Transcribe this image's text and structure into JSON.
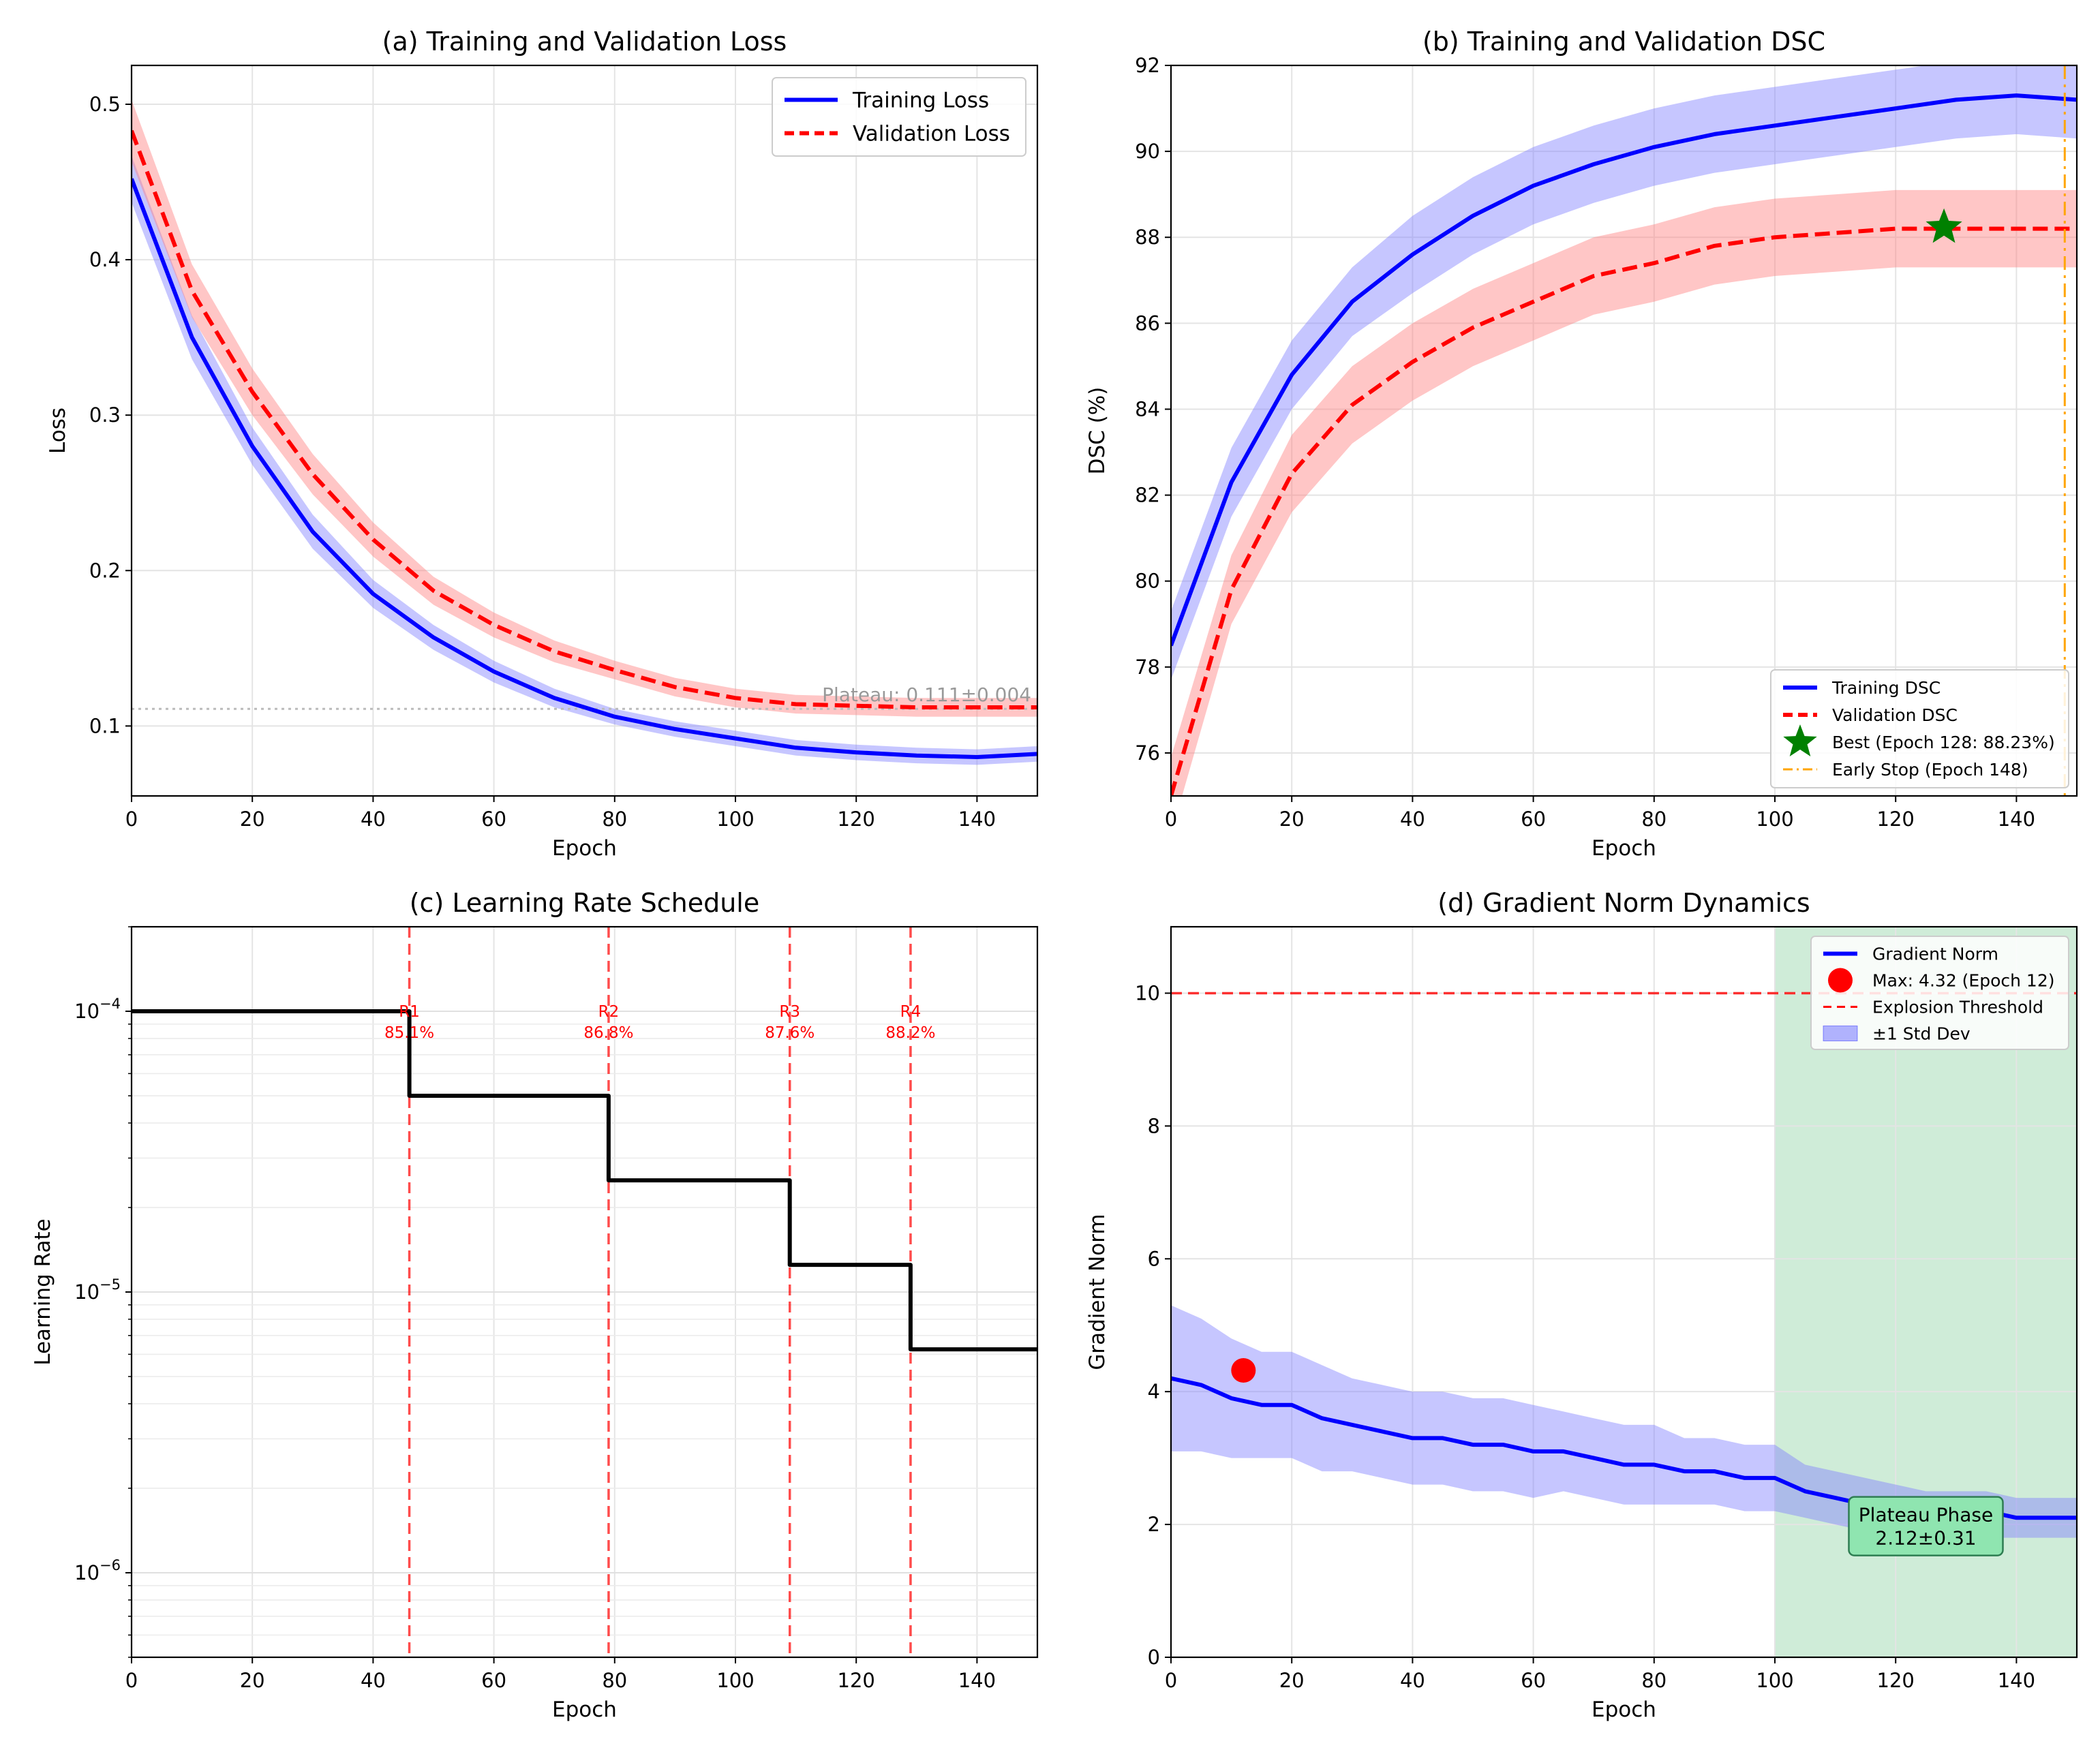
{
  "chart_data": [
    {
      "id": "a",
      "type": "line",
      "title": "(a) Training and Validation Loss",
      "xlabel": "Epoch",
      "ylabel": "Loss",
      "xlim": [
        0,
        150
      ],
      "ylim": [
        0.055,
        0.525
      ],
      "xticks": [
        0,
        20,
        40,
        60,
        80,
        100,
        120,
        140
      ],
      "yticks": [
        0.1,
        0.2,
        0.3,
        0.4,
        0.5
      ],
      "grid": true,
      "legend": "upper-right",
      "series": [
        {
          "name": "Training Loss",
          "style": "solid",
          "color": "#0000ff",
          "band_color": "#8080ff",
          "x": [
            0,
            10,
            20,
            30,
            40,
            50,
            60,
            70,
            80,
            90,
            100,
            110,
            120,
            130,
            140,
            150
          ],
          "y": [
            0.452,
            0.35,
            0.28,
            0.225,
            0.185,
            0.157,
            0.135,
            0.118,
            0.106,
            0.098,
            0.092,
            0.086,
            0.083,
            0.081,
            0.08,
            0.082
          ],
          "lower": [
            0.437,
            0.336,
            0.268,
            0.214,
            0.176,
            0.149,
            0.128,
            0.112,
            0.101,
            0.093,
            0.087,
            0.081,
            0.078,
            0.076,
            0.075,
            0.077
          ],
          "upper": [
            0.467,
            0.364,
            0.292,
            0.236,
            0.194,
            0.165,
            0.142,
            0.124,
            0.111,
            0.103,
            0.097,
            0.091,
            0.088,
            0.086,
            0.085,
            0.087
          ]
        },
        {
          "name": "Validation Loss",
          "style": "dashed",
          "color": "#ff0000",
          "band_color": "#ff8080",
          "x": [
            0,
            10,
            20,
            30,
            40,
            50,
            60,
            70,
            80,
            90,
            100,
            110,
            120,
            130,
            140,
            150
          ],
          "y": [
            0.483,
            0.38,
            0.315,
            0.262,
            0.22,
            0.187,
            0.165,
            0.148,
            0.136,
            0.125,
            0.118,
            0.114,
            0.113,
            0.112,
            0.112,
            0.112
          ],
          "lower": [
            0.463,
            0.363,
            0.3,
            0.249,
            0.209,
            0.178,
            0.157,
            0.141,
            0.13,
            0.119,
            0.112,
            0.108,
            0.107,
            0.106,
            0.106,
            0.106
          ],
          "upper": [
            0.503,
            0.397,
            0.33,
            0.275,
            0.231,
            0.196,
            0.173,
            0.155,
            0.142,
            0.131,
            0.124,
            0.12,
            0.119,
            0.118,
            0.118,
            0.118
          ]
        }
      ],
      "hlines": [
        {
          "y": 0.111,
          "color": "#bbbbbb",
          "style": "dotted"
        }
      ],
      "annotations": [
        {
          "text": "Plateau: 0.111±0.004",
          "x": 149,
          "y": 0.116,
          "color": "#999999",
          "anchor": "end"
        }
      ]
    },
    {
      "id": "b",
      "type": "line",
      "title": "(b) Training and Validation DSC",
      "xlabel": "Epoch",
      "ylabel": "DSC (%)",
      "xlim": [
        0,
        150
      ],
      "ylim": [
        75,
        92
      ],
      "xticks": [
        0,
        20,
        40,
        60,
        80,
        100,
        120,
        140
      ],
      "yticks": [
        76,
        78,
        80,
        82,
        84,
        86,
        88,
        90,
        92
      ],
      "grid": true,
      "legend": "lower-right",
      "series": [
        {
          "name": "Training DSC",
          "style": "solid",
          "color": "#0000ff",
          "band_color": "#8080ff",
          "x": [
            0,
            10,
            20,
            30,
            40,
            50,
            60,
            70,
            80,
            90,
            100,
            110,
            120,
            130,
            140,
            150
          ],
          "y": [
            78.5,
            82.3,
            84.8,
            86.5,
            87.6,
            88.5,
            89.2,
            89.7,
            90.1,
            90.4,
            90.6,
            90.8,
            91.0,
            91.2,
            91.3,
            91.2
          ],
          "lower": [
            77.7,
            81.5,
            84.0,
            85.7,
            86.7,
            87.6,
            88.3,
            88.8,
            89.2,
            89.5,
            89.7,
            89.9,
            90.1,
            90.3,
            90.4,
            90.3
          ],
          "upper": [
            79.3,
            83.1,
            85.6,
            87.3,
            88.5,
            89.4,
            90.1,
            90.6,
            91.0,
            91.3,
            91.5,
            91.7,
            91.9,
            92.1,
            92.2,
            92.1
          ]
        },
        {
          "name": "Validation DSC",
          "style": "dashed",
          "color": "#ff0000",
          "band_color": "#ff8080",
          "x": [
            0,
            10,
            20,
            30,
            40,
            50,
            60,
            70,
            80,
            90,
            100,
            110,
            120,
            130,
            140,
            150
          ],
          "y": [
            75.0,
            79.8,
            82.5,
            84.1,
            85.1,
            85.9,
            86.5,
            87.1,
            87.4,
            87.8,
            88.0,
            88.1,
            88.2,
            88.2,
            88.2,
            88.2
          ],
          "lower": [
            74.1,
            79.0,
            81.6,
            83.2,
            84.2,
            85.0,
            85.6,
            86.2,
            86.5,
            86.9,
            87.1,
            87.2,
            87.3,
            87.3,
            87.3,
            87.3
          ],
          "upper": [
            75.9,
            80.6,
            83.4,
            85.0,
            86.0,
            86.8,
            87.4,
            88.0,
            88.3,
            88.7,
            88.9,
            89.0,
            89.1,
            89.1,
            89.1,
            89.1
          ]
        }
      ],
      "markers": [
        {
          "name": "Best (Epoch 128: 88.23%)",
          "shape": "star",
          "x": 128,
          "y": 88.23,
          "color": "#008000"
        }
      ],
      "vlines": [
        {
          "name": "Early Stop (Epoch 148)",
          "x": 148,
          "color": "#ffa500",
          "style": "dashdot"
        }
      ]
    },
    {
      "id": "c",
      "type": "line",
      "title": "(c) Learning Rate Schedule",
      "xlabel": "Epoch",
      "ylabel": "Learning Rate",
      "scale_y": "log",
      "xlim": [
        0,
        150
      ],
      "ylim": [
        5e-07,
        0.0002
      ],
      "xticks": [
        0,
        20,
        40,
        60,
        80,
        100,
        120,
        140
      ],
      "ytick_labels": [
        {
          "value": 0.0001,
          "base": "10",
          "exp": "−4"
        },
        {
          "value": 1e-05,
          "base": "10",
          "exp": "−5"
        },
        {
          "value": 1e-06,
          "base": "10",
          "exp": "−6"
        }
      ],
      "grid": true,
      "series": [
        {
          "style": "step",
          "color": "#000000",
          "x": [
            0,
            46,
            46,
            79,
            79,
            109,
            109,
            129,
            129,
            150
          ],
          "y": [
            0.0001,
            0.0001,
            5e-05,
            5e-05,
            2.5e-05,
            2.5e-05,
            1.25e-05,
            1.25e-05,
            6.25e-06,
            6.25e-06
          ]
        }
      ],
      "vlines": [
        {
          "x": 46,
          "label": "R1",
          "sublabel": "85.1%",
          "color": "#ff0000"
        },
        {
          "x": 79,
          "label": "R2",
          "sublabel": "86.8%",
          "color": "#ff0000"
        },
        {
          "x": 109,
          "label": "R3",
          "sublabel": "87.6%",
          "color": "#ff0000"
        },
        {
          "x": 129,
          "label": "R4",
          "sublabel": "88.2%",
          "color": "#ff0000"
        }
      ]
    },
    {
      "id": "d",
      "type": "line",
      "title": "(d) Gradient Norm Dynamics",
      "xlabel": "Epoch",
      "ylabel": "Gradient Norm",
      "xlim": [
        0,
        150
      ],
      "ylim": [
        0,
        11
      ],
      "xticks": [
        0,
        20,
        40,
        60,
        80,
        100,
        120,
        140
      ],
      "yticks": [
        0,
        2,
        4,
        6,
        8,
        10
      ],
      "grid": true,
      "legend": "upper-right",
      "span": {
        "x0": 100,
        "x1": 150,
        "color": "#a8dcb8"
      },
      "series": [
        {
          "name": "Gradient Norm",
          "style": "solid",
          "color": "#0000ff",
          "band_name": "±1 Std Dev",
          "band_color": "#8080ff",
          "x": [
            0,
            5,
            10,
            15,
            20,
            25,
            30,
            35,
            40,
            45,
            50,
            55,
            60,
            65,
            70,
            75,
            80,
            85,
            90,
            95,
            100,
            105,
            110,
            115,
            120,
            125,
            130,
            135,
            140,
            145,
            150
          ],
          "y": [
            4.2,
            4.1,
            3.9,
            3.8,
            3.8,
            3.6,
            3.5,
            3.4,
            3.3,
            3.3,
            3.2,
            3.2,
            3.1,
            3.1,
            3.0,
            2.9,
            2.9,
            2.8,
            2.8,
            2.7,
            2.7,
            2.5,
            2.4,
            2.3,
            2.3,
            2.2,
            2.2,
            2.2,
            2.1,
            2.1,
            2.1
          ],
          "lower": [
            3.1,
            3.1,
            3.0,
            3.0,
            3.0,
            2.8,
            2.8,
            2.7,
            2.6,
            2.6,
            2.5,
            2.5,
            2.4,
            2.5,
            2.4,
            2.3,
            2.3,
            2.3,
            2.3,
            2.2,
            2.2,
            2.1,
            2.0,
            1.9,
            1.9,
            1.8,
            1.8,
            1.8,
            1.8,
            1.8,
            1.8
          ],
          "upper": [
            5.3,
            5.1,
            4.8,
            4.6,
            4.6,
            4.4,
            4.2,
            4.1,
            4.0,
            4.0,
            3.9,
            3.9,
            3.8,
            3.7,
            3.6,
            3.5,
            3.5,
            3.3,
            3.3,
            3.2,
            3.2,
            2.9,
            2.8,
            2.7,
            2.6,
            2.5,
            2.5,
            2.5,
            2.4,
            2.4,
            2.4
          ]
        }
      ],
      "markers": [
        {
          "name": "Max: 4.32 (Epoch 12)",
          "shape": "circle",
          "x": 12,
          "y": 4.32,
          "color": "#ff0000"
        }
      ],
      "hlines": [
        {
          "name": "Explosion Threshold",
          "y": 10,
          "color": "#ff0000",
          "style": "dashed"
        }
      ],
      "annotations": [
        {
          "text": "Plateau Phase",
          "text2": "2.12±0.31",
          "x": 125,
          "y": 1.8,
          "box_color": "#8fe5b0",
          "box_edge": "#2e7d52"
        }
      ]
    }
  ]
}
